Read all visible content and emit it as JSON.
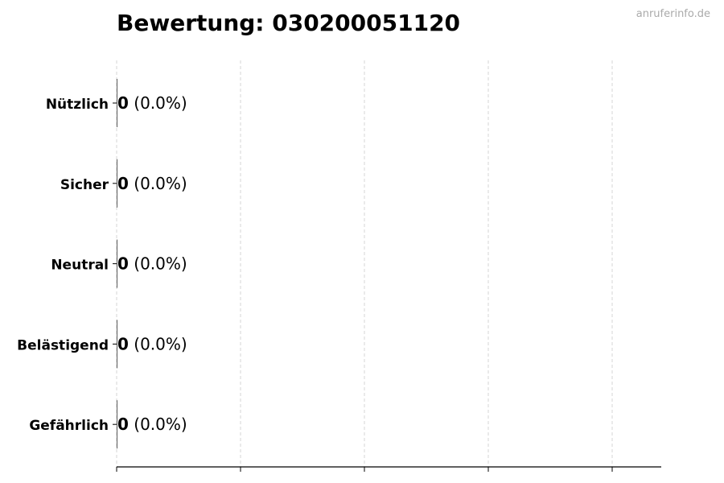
{
  "chart_data": {
    "type": "bar",
    "orientation": "horizontal",
    "title": "Bewertung: 030200051120",
    "watermark": "anruferinfo.de",
    "categories": [
      "Nützlich",
      "Sicher",
      "Neutral",
      "Belästigend",
      "Gefährlich"
    ],
    "values": [
      0,
      0,
      0,
      0,
      0
    ],
    "percent_labels": [
      "(0.0%)",
      "(0.0%)",
      "(0.0%)",
      "(0.0%)",
      "(0.0%)"
    ],
    "grid": "x, dashed",
    "x_tick_labels": [],
    "xlabel": "",
    "ylabel": ""
  }
}
